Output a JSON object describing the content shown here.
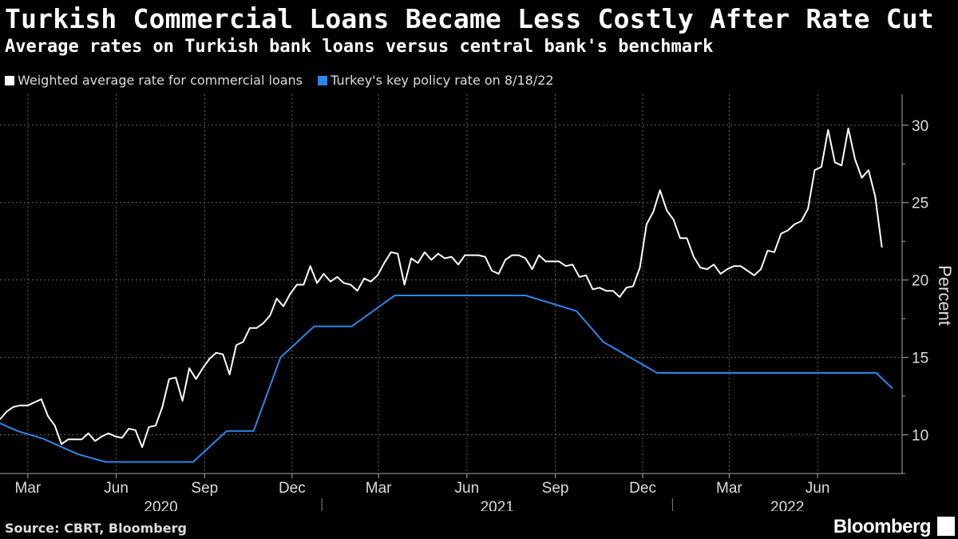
{
  "header": {
    "title": "Turkish Commercial Loans Became Less Costly After Rate Cut",
    "subtitle": "Average rates on Turkish bank loans versus central bank's benchmark"
  },
  "footer": {
    "source": "Source: CBRT, Bloomberg",
    "brand": "Bloomberg"
  },
  "colors": {
    "background": "#000000",
    "series_white": "#ffffff",
    "series_blue": "#2a87ec",
    "grid": "#666666"
  },
  "chart_data": {
    "type": "line",
    "title": "Turkish Commercial Loans Became Less Costly After Rate Cut",
    "subtitle": "Average rates on Turkish bank loans versus central bank's benchmark",
    "ylabel": "Percent",
    "ylim": [
      7.5,
      32
    ],
    "yticks": [
      10,
      15,
      20,
      25,
      30
    ],
    "x_axis": {
      "type": "time",
      "range": [
        "2020-02-01",
        "2022-08-28"
      ],
      "month_ticks": [
        {
          "label": "Mar",
          "date": "2020-03-01"
        },
        {
          "label": "Jun",
          "date": "2020-06-01"
        },
        {
          "label": "Sep",
          "date": "2020-09-01"
        },
        {
          "label": "Dec",
          "date": "2020-12-01"
        },
        {
          "label": "Mar",
          "date": "2021-03-01"
        },
        {
          "label": "Jun",
          "date": "2021-06-01"
        },
        {
          "label": "Sep",
          "date": "2021-09-01"
        },
        {
          "label": "Dec",
          "date": "2021-12-01"
        },
        {
          "label": "Mar",
          "date": "2022-03-01"
        },
        {
          "label": "Jun",
          "date": "2022-06-01"
        }
      ],
      "years": [
        {
          "label": "2020",
          "start": "2020-02-01",
          "end": "2021-01-01"
        },
        {
          "label": "2021",
          "start": "2021-01-01",
          "end": "2022-01-01"
        },
        {
          "label": "2022",
          "start": "2022-01-01",
          "end": "2022-08-28"
        }
      ]
    },
    "grid": true,
    "legend_position": "top-left",
    "series": [
      {
        "name": "Weighted average rate for commercial loans",
        "color": "#ffffff",
        "points": [
          [
            "2020-02-01",
            11.0
          ],
          [
            "2020-02-08",
            11.5
          ],
          [
            "2020-02-15",
            11.8
          ],
          [
            "2020-02-22",
            11.9
          ],
          [
            "2020-03-01",
            11.9
          ],
          [
            "2020-03-08",
            12.1
          ],
          [
            "2020-03-15",
            12.3
          ],
          [
            "2020-03-22",
            11.2
          ],
          [
            "2020-03-29",
            10.6
          ],
          [
            "2020-04-05",
            9.4
          ],
          [
            "2020-04-12",
            9.7
          ],
          [
            "2020-04-19",
            9.7
          ],
          [
            "2020-04-26",
            9.7
          ],
          [
            "2020-05-03",
            10.1
          ],
          [
            "2020-05-10",
            9.6
          ],
          [
            "2020-05-17",
            9.9
          ],
          [
            "2020-05-24",
            10.1
          ],
          [
            "2020-05-31",
            9.9
          ],
          [
            "2020-06-07",
            9.8
          ],
          [
            "2020-06-14",
            10.4
          ],
          [
            "2020-06-21",
            10.3
          ],
          [
            "2020-06-28",
            9.2
          ],
          [
            "2020-07-05",
            10.5
          ],
          [
            "2020-07-12",
            10.6
          ],
          [
            "2020-07-19",
            11.8
          ],
          [
            "2020-07-26",
            13.6
          ],
          [
            "2020-08-02",
            13.7
          ],
          [
            "2020-08-09",
            12.2
          ],
          [
            "2020-08-16",
            14.3
          ],
          [
            "2020-08-23",
            13.6
          ],
          [
            "2020-08-30",
            14.3
          ],
          [
            "2020-09-06",
            14.9
          ],
          [
            "2020-09-13",
            15.3
          ],
          [
            "2020-09-20",
            15.2
          ],
          [
            "2020-09-27",
            13.9
          ],
          [
            "2020-10-04",
            15.8
          ],
          [
            "2020-10-11",
            16.0
          ],
          [
            "2020-10-18",
            16.9
          ],
          [
            "2020-10-25",
            16.9
          ],
          [
            "2020-11-01",
            17.2
          ],
          [
            "2020-11-08",
            17.7
          ],
          [
            "2020-11-15",
            18.8
          ],
          [
            "2020-11-22",
            18.3
          ],
          [
            "2020-11-29",
            19.1
          ],
          [
            "2020-12-06",
            19.7
          ],
          [
            "2020-12-13",
            19.7
          ],
          [
            "2020-12-20",
            20.9
          ],
          [
            "2020-12-27",
            19.8
          ],
          [
            "2021-01-03",
            20.4
          ],
          [
            "2021-01-10",
            19.9
          ],
          [
            "2021-01-17",
            20.2
          ],
          [
            "2021-01-24",
            19.8
          ],
          [
            "2021-01-31",
            19.7
          ],
          [
            "2021-02-07",
            19.3
          ],
          [
            "2021-02-14",
            20.1
          ],
          [
            "2021-02-21",
            19.9
          ],
          [
            "2021-02-28",
            20.3
          ],
          [
            "2021-03-07",
            21.1
          ],
          [
            "2021-03-14",
            21.8
          ],
          [
            "2021-03-21",
            21.7
          ],
          [
            "2021-03-28",
            19.7
          ],
          [
            "2021-04-04",
            21.4
          ],
          [
            "2021-04-11",
            21.1
          ],
          [
            "2021-04-18",
            21.8
          ],
          [
            "2021-04-25",
            21.3
          ],
          [
            "2021-05-02",
            21.7
          ],
          [
            "2021-05-09",
            21.4
          ],
          [
            "2021-05-16",
            21.5
          ],
          [
            "2021-05-23",
            21.0
          ],
          [
            "2021-05-30",
            21.6
          ],
          [
            "2021-06-06",
            21.6
          ],
          [
            "2021-06-13",
            21.6
          ],
          [
            "2021-06-20",
            21.5
          ],
          [
            "2021-06-27",
            20.6
          ],
          [
            "2021-07-04",
            20.4
          ],
          [
            "2021-07-11",
            21.3
          ],
          [
            "2021-07-18",
            21.6
          ],
          [
            "2021-07-25",
            21.6
          ],
          [
            "2021-08-01",
            21.4
          ],
          [
            "2021-08-08",
            20.7
          ],
          [
            "2021-08-15",
            21.6
          ],
          [
            "2021-08-22",
            21.2
          ],
          [
            "2021-08-29",
            21.2
          ],
          [
            "2021-09-05",
            21.2
          ],
          [
            "2021-09-12",
            20.9
          ],
          [
            "2021-09-19",
            21.0
          ],
          [
            "2021-09-26",
            20.2
          ],
          [
            "2021-10-03",
            20.3
          ],
          [
            "2021-10-10",
            19.4
          ],
          [
            "2021-10-17",
            19.5
          ],
          [
            "2021-10-24",
            19.3
          ],
          [
            "2021-10-31",
            19.3
          ],
          [
            "2021-11-07",
            18.9
          ],
          [
            "2021-11-14",
            19.5
          ],
          [
            "2021-11-21",
            19.6
          ],
          [
            "2021-11-28",
            20.8
          ],
          [
            "2021-12-05",
            23.6
          ],
          [
            "2021-12-12",
            24.4
          ],
          [
            "2021-12-19",
            25.8
          ],
          [
            "2021-12-26",
            24.5
          ],
          [
            "2022-01-02",
            23.9
          ],
          [
            "2022-01-09",
            22.7
          ],
          [
            "2022-01-16",
            22.7
          ],
          [
            "2022-01-23",
            21.5
          ],
          [
            "2022-01-30",
            20.8
          ],
          [
            "2022-02-06",
            20.7
          ],
          [
            "2022-02-13",
            21.0
          ],
          [
            "2022-02-20",
            20.4
          ],
          [
            "2022-02-27",
            20.7
          ],
          [
            "2022-03-06",
            20.9
          ],
          [
            "2022-03-13",
            20.9
          ],
          [
            "2022-03-20",
            20.6
          ],
          [
            "2022-03-27",
            20.3
          ],
          [
            "2022-04-03",
            20.7
          ],
          [
            "2022-04-10",
            21.9
          ],
          [
            "2022-04-17",
            21.8
          ],
          [
            "2022-04-24",
            23.0
          ],
          [
            "2022-05-01",
            23.2
          ],
          [
            "2022-05-08",
            23.6
          ],
          [
            "2022-05-15",
            23.8
          ],
          [
            "2022-05-22",
            24.6
          ],
          [
            "2022-05-29",
            27.1
          ],
          [
            "2022-06-05",
            27.3
          ],
          [
            "2022-06-12",
            29.7
          ],
          [
            "2022-06-19",
            27.6
          ],
          [
            "2022-06-26",
            27.4
          ],
          [
            "2022-07-03",
            29.8
          ],
          [
            "2022-07-10",
            27.8
          ],
          [
            "2022-07-17",
            26.6
          ],
          [
            "2022-07-24",
            27.1
          ],
          [
            "2022-07-31",
            25.4
          ],
          [
            "2022-08-07",
            22.1
          ]
        ]
      },
      {
        "name": "Turkey's key policy rate on 8/18/22",
        "color": "#2a87ec",
        "points": [
          [
            "2020-02-01",
            10.75
          ],
          [
            "2020-02-19",
            10.25
          ],
          [
            "2020-03-17",
            9.75
          ],
          [
            "2020-04-22",
            8.75
          ],
          [
            "2020-05-21",
            8.25
          ],
          [
            "2020-08-20",
            8.25
          ],
          [
            "2020-09-24",
            10.25
          ],
          [
            "2020-10-22",
            10.25
          ],
          [
            "2020-11-19",
            15.0
          ],
          [
            "2020-12-24",
            17.0
          ],
          [
            "2021-02-01",
            17.0
          ],
          [
            "2021-03-18",
            19.0
          ],
          [
            "2021-08-01",
            19.0
          ],
          [
            "2021-09-23",
            18.0
          ],
          [
            "2021-10-21",
            16.0
          ],
          [
            "2021-11-18",
            15.0
          ],
          [
            "2021-12-16",
            14.0
          ],
          [
            "2022-08-01",
            14.0
          ],
          [
            "2022-08-18",
            13.0
          ]
        ]
      }
    ]
  }
}
